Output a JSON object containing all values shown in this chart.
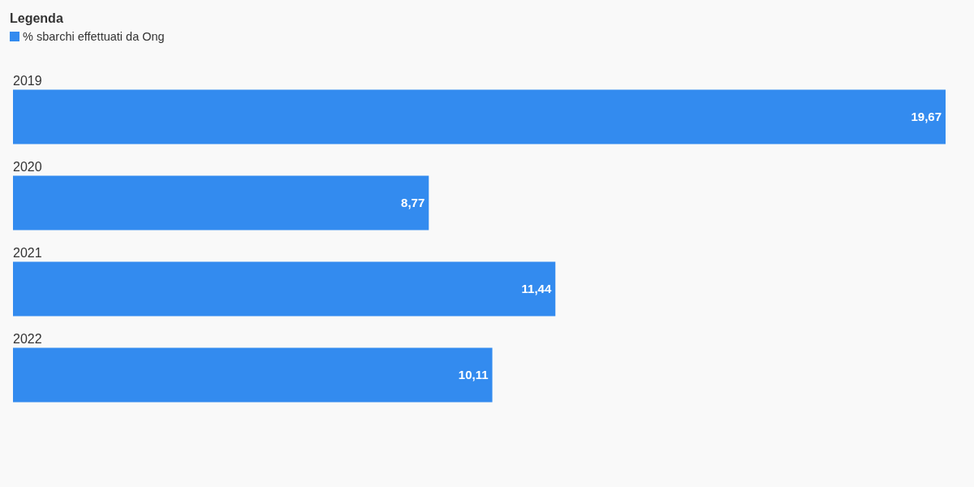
{
  "chart_data": {
    "type": "bar",
    "orientation": "horizontal",
    "categories": [
      "2019",
      "2020",
      "2021",
      "2022"
    ],
    "series": [
      {
        "name": "% sbarchi effettuati da Ong",
        "color": "#338bef",
        "values": [
          19.67,
          8.77,
          11.44,
          10.11
        ],
        "value_labels": [
          "19,67",
          "8,77",
          "11,44",
          "10,11"
        ]
      }
    ],
    "legend": "top left",
    "legend_title": "Legenda",
    "tick_labels": "y"
  }
}
